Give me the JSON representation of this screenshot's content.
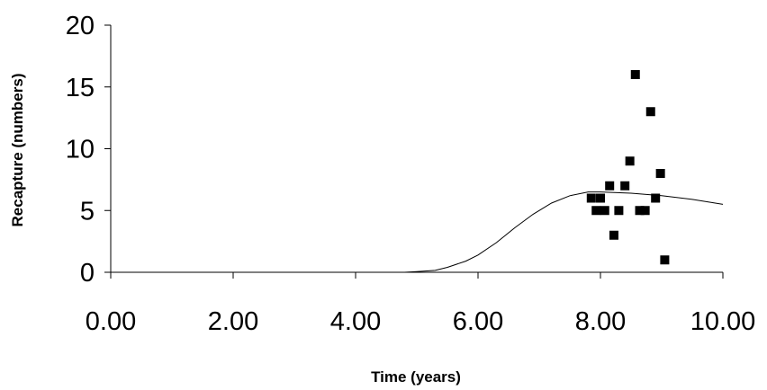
{
  "chart_data": {
    "type": "scatter",
    "title": "",
    "xlabel": "Time (years)",
    "ylabel": "Recapture (numbers)",
    "xlim": [
      0,
      10
    ],
    "ylim": [
      0,
      20
    ],
    "x_ticks": [
      0,
      2,
      4,
      6,
      8,
      10
    ],
    "x_tick_labels": [
      "0.00",
      "2.00",
      "4.00",
      "6.00",
      "8.00",
      "10.00"
    ],
    "y_ticks": [
      0,
      5,
      10,
      15,
      20
    ],
    "y_tick_labels": [
      "0",
      "5",
      "10",
      "15",
      "20"
    ],
    "grid": false,
    "legend": "none",
    "series": [
      {
        "kind": "points",
        "marker": "square",
        "color": "#000000",
        "points": [
          {
            "x": 7.85,
            "y": 6
          },
          {
            "x": 7.93,
            "y": 5
          },
          {
            "x": 8.0,
            "y": 6
          },
          {
            "x": 8.07,
            "y": 5
          },
          {
            "x": 8.15,
            "y": 7
          },
          {
            "x": 8.22,
            "y": 3
          },
          {
            "x": 8.3,
            "y": 5
          },
          {
            "x": 8.4,
            "y": 7
          },
          {
            "x": 8.48,
            "y": 9
          },
          {
            "x": 8.57,
            "y": 16
          },
          {
            "x": 8.64,
            "y": 5
          },
          {
            "x": 8.73,
            "y": 5
          },
          {
            "x": 8.82,
            "y": 13
          },
          {
            "x": 8.9,
            "y": 6
          },
          {
            "x": 8.98,
            "y": 8
          },
          {
            "x": 9.05,
            "y": 1
          }
        ]
      },
      {
        "kind": "line",
        "color": "#000000",
        "points": [
          {
            "x": 0.0,
            "y": 0
          },
          {
            "x": 4.8,
            "y": 0
          },
          {
            "x": 5.0,
            "y": 0.05
          },
          {
            "x": 5.3,
            "y": 0.15
          },
          {
            "x": 5.5,
            "y": 0.4
          },
          {
            "x": 5.8,
            "y": 0.9
          },
          {
            "x": 6.0,
            "y": 1.4
          },
          {
            "x": 6.3,
            "y": 2.4
          },
          {
            "x": 6.6,
            "y": 3.6
          },
          {
            "x": 6.9,
            "y": 4.7
          },
          {
            "x": 7.2,
            "y": 5.6
          },
          {
            "x": 7.5,
            "y": 6.2
          },
          {
            "x": 7.8,
            "y": 6.5
          },
          {
            "x": 8.0,
            "y": 6.5
          },
          {
            "x": 8.5,
            "y": 6.4
          },
          {
            "x": 9.0,
            "y": 6.2
          },
          {
            "x": 9.5,
            "y": 5.9
          },
          {
            "x": 10.0,
            "y": 5.5
          }
        ]
      }
    ]
  }
}
